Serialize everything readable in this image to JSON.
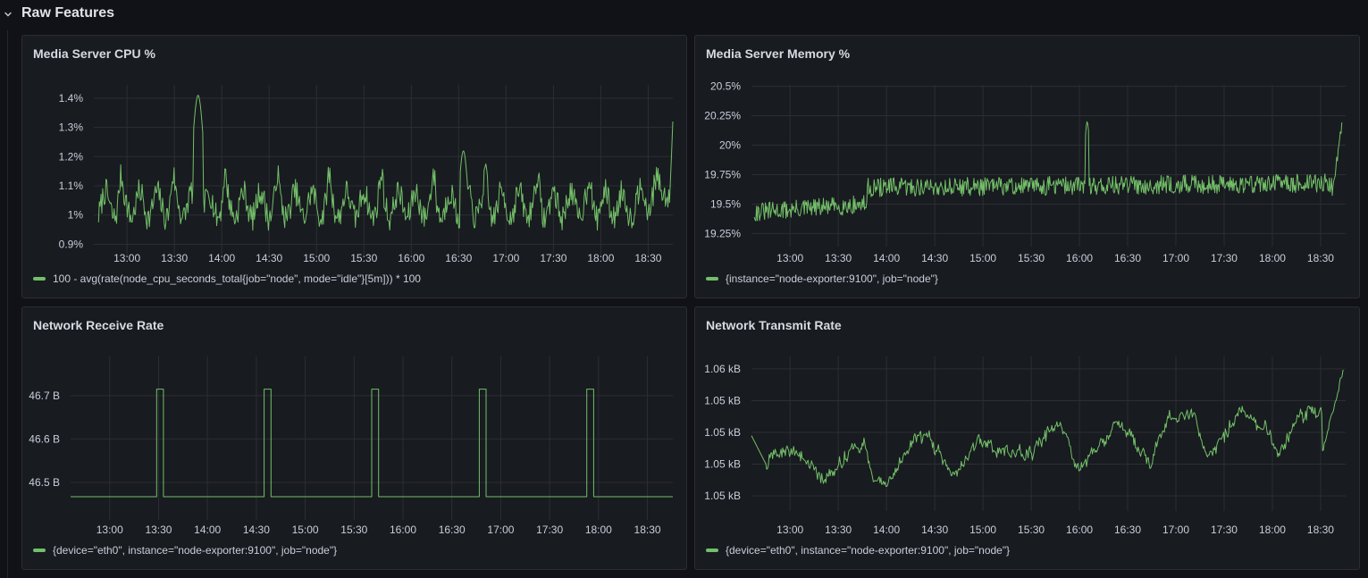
{
  "row": {
    "title": "Raw Features"
  },
  "colors": {
    "series": "#73bf69",
    "grid": "#2c2e34",
    "background": "#181b1f"
  },
  "panels": [
    {
      "id": "cpu",
      "title": "Media Server CPU %",
      "legend": "100 - avg(rate(node_cpu_seconds_total{job=\"node\", mode=\"idle\"}[5m])) * 100",
      "chart_data": {
        "type": "line",
        "x_ticks": [
          "13:00",
          "13:30",
          "14:00",
          "14:30",
          "15:00",
          "15:30",
          "16:00",
          "16:30",
          "17:00",
          "17:30",
          "18:00",
          "18:30"
        ],
        "y_ticks": [
          {
            "v": 0.9,
            "label": "0.9%"
          },
          {
            "v": 1.0,
            "label": "1%"
          },
          {
            "v": 1.1,
            "label": "1.1%"
          },
          {
            "v": 1.2,
            "label": "1.2%"
          },
          {
            "v": 1.3,
            "label": "1.3%"
          },
          {
            "v": 1.4,
            "label": "1.4%"
          }
        ],
        "ylim": [
          0.88,
          1.43
        ],
        "x_range_hours": [
          12.65,
          18.76
        ],
        "series": [
          {
            "values_description": "noisy around 1.02-1.08%, spike 1.41% at 13:45, spike 1.22% at 16:32, end 1.31%"
          }
        ]
      }
    },
    {
      "id": "mem",
      "title": "Media Server Memory %",
      "legend": "{instance=\"node-exporter:9100\", job=\"node\"}",
      "chart_data": {
        "type": "line",
        "x_ticks": [
          "13:00",
          "13:30",
          "14:00",
          "14:30",
          "15:00",
          "15:30",
          "16:00",
          "16:30",
          "17:00",
          "17:30",
          "18:00",
          "18:30"
        ],
        "y_ticks": [
          {
            "v": 19.25,
            "label": "19.25%"
          },
          {
            "v": 19.5,
            "label": "19.5%"
          },
          {
            "v": 19.75,
            "label": "19.75%"
          },
          {
            "v": 20.0,
            "label": "20%"
          },
          {
            "v": 20.25,
            "label": "20.25%"
          },
          {
            "v": 20.5,
            "label": "20.5%"
          }
        ],
        "ylim": [
          19.2,
          20.55
        ],
        "x_range_hours": [
          12.6,
          18.76
        ]
      }
    },
    {
      "id": "rx",
      "title": "Network Receive Rate",
      "legend": "{device=\"eth0\", instance=\"node-exporter:9100\", job=\"node\"}",
      "chart_data": {
        "type": "line",
        "x_ticks": [
          "13:00",
          "13:30",
          "14:00",
          "14:30",
          "15:00",
          "15:30",
          "16:00",
          "16:30",
          "17:00",
          "17:30",
          "18:00",
          "18:30"
        ],
        "y_ticks": [
          {
            "v": 46.5,
            "label": "46.5 B"
          },
          {
            "v": 46.6,
            "label": "46.6 B"
          },
          {
            "v": 46.7,
            "label": "46.7 B"
          }
        ],
        "ylim": [
          46.43,
          46.78
        ],
        "x_range_hours": [
          12.6,
          18.76
        ],
        "baseline": 46.467,
        "peak": 46.715,
        "pulses_start_hours": [
          13.48,
          14.58,
          15.68,
          16.78,
          17.88
        ],
        "pulse_width_hours": 0.07
      }
    },
    {
      "id": "tx",
      "title": "Network Transmit Rate",
      "legend": "{device=\"eth0\", instance=\"node-exporter:9100\", job=\"node\"}",
      "chart_data": {
        "type": "line",
        "x_ticks": [
          "13:00",
          "13:30",
          "14:00",
          "14:30",
          "15:00",
          "15:30",
          "16:00",
          "16:30",
          "17:00",
          "17:30",
          "18:00",
          "18:30"
        ],
        "y_ticks": [
          {
            "v": 1,
            "label": "1.05 kB"
          },
          {
            "v": 2,
            "label": "1.05 kB"
          },
          {
            "v": 3,
            "label": "1.05 kB"
          },
          {
            "v": 4,
            "label": "1.05 kB"
          },
          {
            "v": 5,
            "label": "1.06 kB"
          }
        ],
        "ylim": [
          0.75,
          5.25
        ],
        "x_range_hours": [
          12.6,
          18.76
        ]
      }
    }
  ]
}
